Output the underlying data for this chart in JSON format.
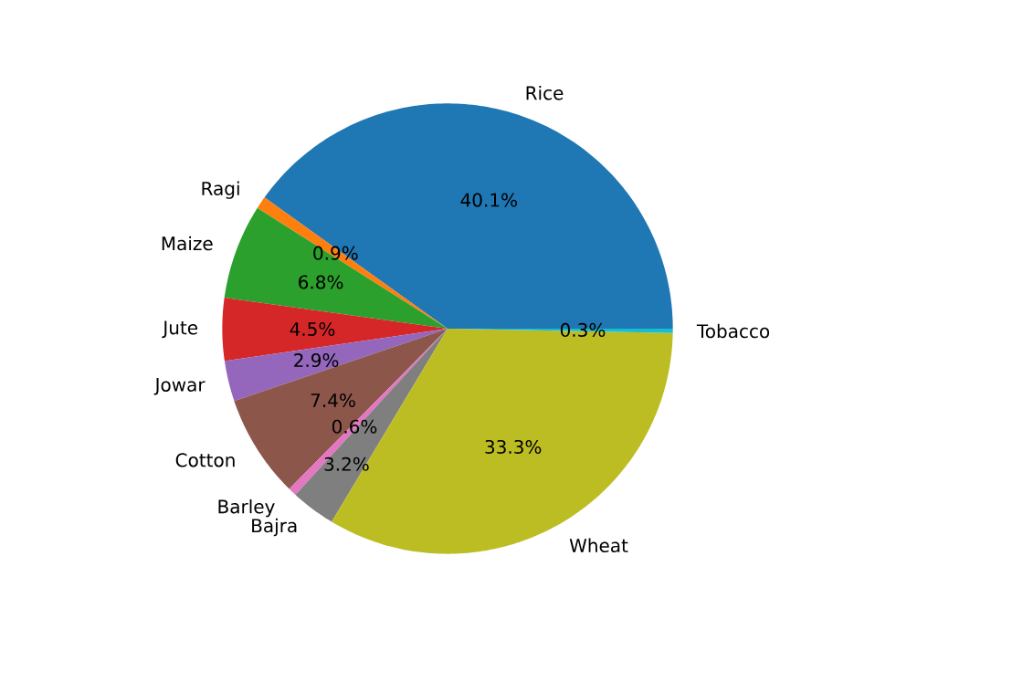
{
  "chart_data": {
    "type": "pie",
    "categories": [
      "Rice",
      "Ragi",
      "Maize",
      "Jute",
      "Jowar",
      "Cotton",
      "Barley",
      "Bajra",
      "Wheat",
      "Tobacco"
    ],
    "values": [
      40.1,
      0.9,
      6.8,
      4.5,
      2.9,
      7.4,
      0.6,
      3.2,
      33.3,
      0.3
    ],
    "value_labels": [
      "40.1%",
      "0.9%",
      "6.8%",
      "4.5%",
      "2.9%",
      "7.4%",
      "0.6%",
      "3.2%",
      "33.3%",
      "0.3%"
    ],
    "colors": [
      "#1f77b4",
      "#ff7f0e",
      "#2ca02c",
      "#d62728",
      "#9467bd",
      "#8c564b",
      "#e377c2",
      "#7f7f7f",
      "#bcbd22",
      "#17becf"
    ]
  }
}
